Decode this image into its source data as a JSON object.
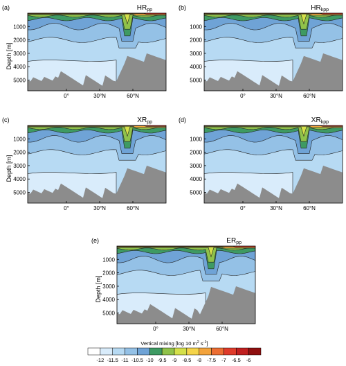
{
  "chart_data": [
    {
      "type": "heatmap",
      "panel": "(a)",
      "title_main": "HR",
      "title_sub": "pp",
      "ylabel": "Depth [m]",
      "yticks": [
        1000,
        2000,
        3000,
        4000,
        5000
      ],
      "xticks": [
        "0°",
        "30°N",
        "60°N"
      ],
      "ylim": [
        0,
        5800
      ],
      "xlim": [
        -35,
        90
      ],
      "bathymetry_deep": 5100,
      "ridge_lat": 55,
      "ridge_depth": 3000
    },
    {
      "type": "heatmap",
      "panel": "(b)",
      "title_main": "HR",
      "title_sub": "kpp",
      "ylabel": "",
      "yticks": [
        1000,
        2000,
        3000,
        4000,
        5000
      ],
      "xticks": [
        "0°",
        "30°N",
        "60°N"
      ],
      "ylim": [
        0,
        5800
      ],
      "xlim": [
        -35,
        90
      ],
      "bathymetry_deep": 5100,
      "ridge_lat": 55,
      "ridge_depth": 3000
    },
    {
      "type": "heatmap",
      "panel": "(c)",
      "title_main": "XR",
      "title_sub": "pp",
      "ylabel": "Depth [m]",
      "yticks": [
        1000,
        2000,
        3000,
        4000,
        5000
      ],
      "xticks": [
        "0°",
        "30°N",
        "60°N"
      ],
      "ylim": [
        0,
        5800
      ],
      "xlim": [
        -35,
        90
      ],
      "bathymetry_deep": 5100,
      "ridge_lat": 55,
      "ridge_depth": 3000
    },
    {
      "type": "heatmap",
      "panel": "(d)",
      "title_main": "XR",
      "title_sub": "kpp",
      "ylabel": "",
      "yticks": [
        1000,
        2000,
        3000,
        4000,
        5000
      ],
      "xticks": [
        "0°",
        "30°N",
        "60°N"
      ],
      "ylim": [
        0,
        5800
      ],
      "xlim": [
        -35,
        90
      ],
      "bathymetry_deep": 5100,
      "ridge_lat": 55,
      "ridge_depth": 3000
    },
    {
      "type": "heatmap",
      "panel": "(e)",
      "title_main": "ER",
      "title_sub": "pp",
      "ylabel": "Depth [m]",
      "yticks": [
        1000,
        2000,
        3000,
        4000,
        5000
      ],
      "xticks": [
        "0°",
        "30°N",
        "60°N"
      ],
      "ylim": [
        0,
        5800
      ],
      "xlim": [
        -35,
        90
      ],
      "bathymetry_deep": 5100,
      "ridge_lat": 50,
      "ridge_depth": 3000
    }
  ],
  "colorbar": {
    "title_prefix": "Vertical mixing [log 10 m",
    "title_sup1": "2",
    "title_mid": " s",
    "title_sup2": "-1",
    "title_suffix": "]",
    "tick_labels": [
      "-12",
      "-11.5",
      "-11",
      "-10.5",
      "-10",
      "-9.5",
      "-9",
      "-8.5",
      "-8",
      "-7.5",
      "-7",
      "-6.5",
      "-6"
    ],
    "levels": [
      -12,
      -11.5,
      -11,
      -10.5,
      -10,
      -9.5,
      -9,
      -8.5,
      -8,
      -7.5,
      -7,
      -6.5,
      -6
    ],
    "colors": [
      "#ffffff",
      "#d9ecfb",
      "#b7daf3",
      "#94c1e6",
      "#6fa3d6",
      "#3e9a63",
      "#90c24a",
      "#d4e04a",
      "#f5d44a",
      "#f3a33c",
      "#ec6e33",
      "#df3b2a",
      "#c01f1f",
      "#8f0f0f"
    ]
  },
  "colors": {
    "land": "#8c8c8c",
    "contour": "#222222"
  }
}
